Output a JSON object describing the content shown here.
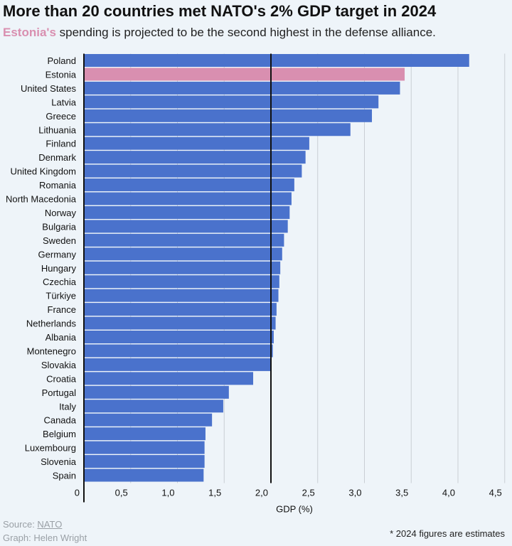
{
  "header": {
    "title": "More than 20 countries met NATO's 2% GDP target in 2024",
    "subtitle_highlight": "Estonia's",
    "subtitle_rest": " spending is projected to be the second highest in the defense alliance."
  },
  "footer": {
    "source_label": "Source: ",
    "source_link": "NATO",
    "graph_credit": "Graph: Helen Wright",
    "note": "* 2024 figures are estimates"
  },
  "colors": {
    "bar": "#4a72cc",
    "highlight": "#d98fb0",
    "background": "#eef4f9",
    "grid": "#c9ced4",
    "axis": "#111111"
  },
  "chart_data": {
    "type": "bar",
    "orientation": "horizontal",
    "xlabel": "GDP (%)",
    "xlim": [
      0,
      4.5
    ],
    "xticks": [
      0,
      0.5,
      1.0,
      1.5,
      2.0,
      2.5,
      3.0,
      3.5,
      4.0,
      4.5
    ],
    "xtick_labels": [
      "0",
      "0,5",
      "1,0",
      "1,5",
      "2,0",
      "2,5",
      "3,0",
      "3,5",
      "4,0",
      "4,5"
    ],
    "reference_line": 2.0,
    "grid": true,
    "highlight_category": "Estonia",
    "categories": [
      "Poland",
      "Estonia",
      "United States",
      "Latvia",
      "Greece",
      "Lithuania",
      "Finland",
      "Denmark",
      "United Kingdom",
      "Romania",
      "North Macedonia",
      "Norway",
      "Bulgaria",
      "Sweden",
      "Germany",
      "Hungary",
      "Czechia",
      "Türkiye",
      "France",
      "Netherlands",
      "Albania",
      "Montenegro",
      "Slovakia",
      "Croatia",
      "Portugal",
      "Italy",
      "Canada",
      "Belgium",
      "Luxembourg",
      "Slovenia",
      "Spain"
    ],
    "values": [
      4.12,
      3.43,
      3.38,
      3.15,
      3.08,
      2.85,
      2.41,
      2.37,
      2.33,
      2.25,
      2.22,
      2.2,
      2.18,
      2.14,
      2.12,
      2.1,
      2.09,
      2.08,
      2.06,
      2.05,
      2.03,
      2.02,
      2.0,
      1.81,
      1.55,
      1.49,
      1.37,
      1.3,
      1.29,
      1.29,
      1.28
    ]
  }
}
